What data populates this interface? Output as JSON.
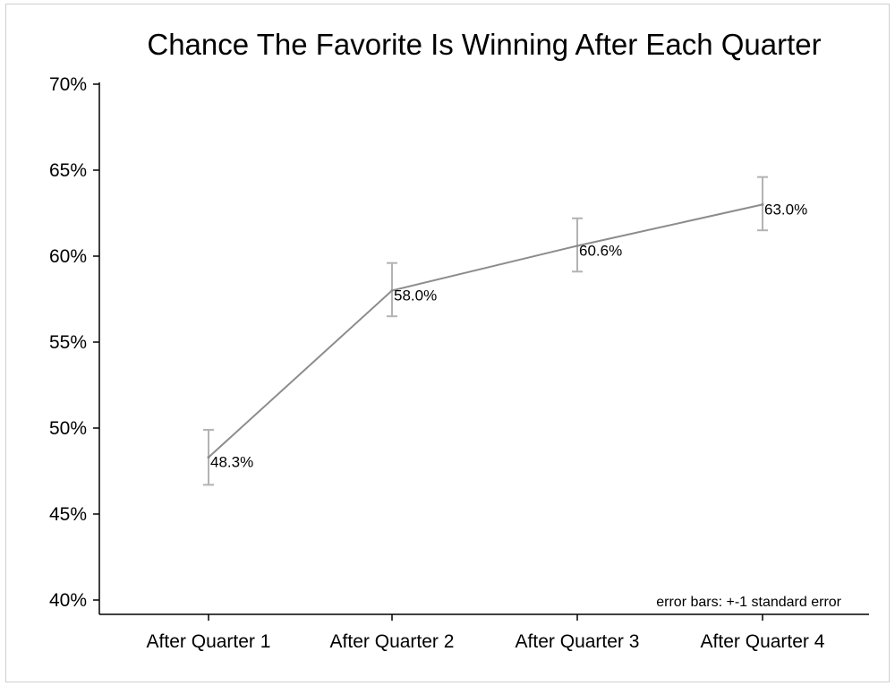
{
  "chart_data": {
    "type": "line",
    "title": "Chance The Favorite Is Winning After Each Quarter",
    "categories": [
      "After Quarter 1",
      "After Quarter 2",
      "After Quarter 3",
      "After Quarter 4"
    ],
    "series": [
      {
        "values": [
          48.3,
          58.0,
          60.6,
          63.0
        ],
        "data_labels": [
          "48.3%",
          "58.0%",
          "60.6%",
          "63.0%"
        ],
        "error_low": [
          46.7,
          56.5,
          59.1,
          61.5
        ],
        "error_high": [
          49.9,
          59.6,
          62.2,
          64.6
        ]
      }
    ],
    "ylim": [
      40,
      70
    ],
    "yticks": [
      40,
      45,
      50,
      55,
      60,
      65,
      70
    ],
    "ytick_labels": [
      "40%",
      "45%",
      "50%",
      "55%",
      "60%",
      "65%",
      "70%"
    ],
    "annotation": "error bars: +-1 standard error",
    "grid": false,
    "line_color": "#8c8c8c",
    "errorbar_color": "#b3b3b3"
  }
}
